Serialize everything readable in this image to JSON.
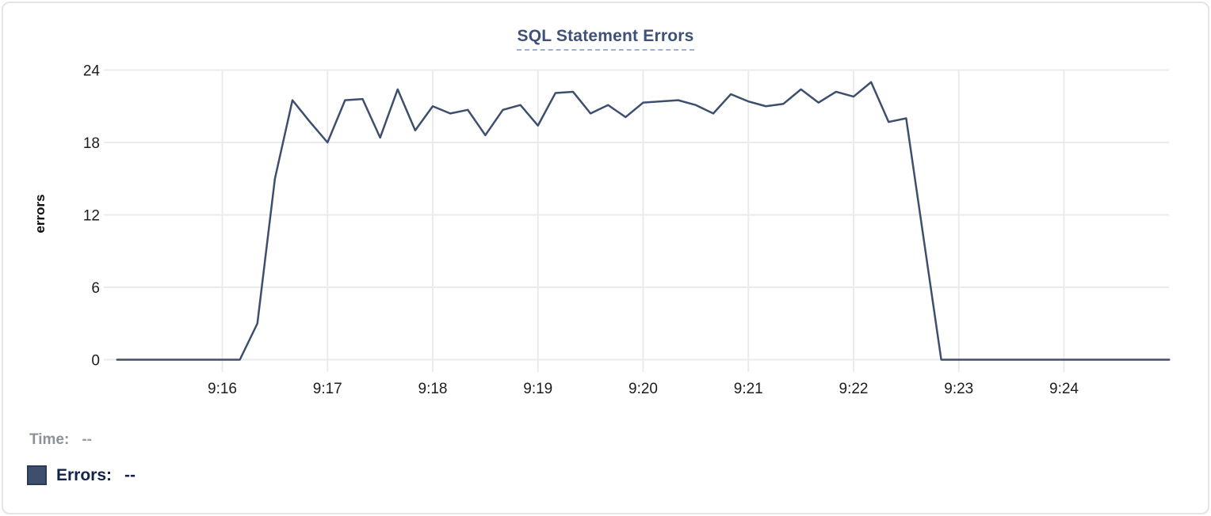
{
  "card": {
    "background": "#ffffff",
    "border_color": "#e4e5e9"
  },
  "chart_data": {
    "type": "line",
    "title": "SQL Statement Errors",
    "xlabel": "",
    "ylabel": "errors",
    "grid": true,
    "legend_position": "bottom-left",
    "ylim": [
      0,
      24
    ],
    "y_ticks": [
      0,
      6,
      12,
      18,
      24
    ],
    "x_start_time": "9:15:00",
    "x_end_time": "9:25:00",
    "xlim_seconds": [
      0,
      600
    ],
    "t_step_seconds": 10,
    "x_ticks": [
      {
        "label": "9:16",
        "t": 60
      },
      {
        "label": "9:17",
        "t": 120
      },
      {
        "label": "9:18",
        "t": 180
      },
      {
        "label": "9:19",
        "t": 240
      },
      {
        "label": "9:20",
        "t": 300
      },
      {
        "label": "9:21",
        "t": 360
      },
      {
        "label": "9:22",
        "t": 420
      },
      {
        "label": "9:23",
        "t": 480
      },
      {
        "label": "9:24",
        "t": 540
      }
    ],
    "series": [
      {
        "name": "Errors",
        "color": "#3e4f6e",
        "values": [
          0,
          0,
          0,
          0,
          0,
          0,
          0,
          0,
          3,
          15,
          21.5,
          19.7,
          18,
          21.5,
          21.6,
          18.4,
          22.4,
          19,
          21,
          20.4,
          20.7,
          18.6,
          20.7,
          21.1,
          19.4,
          22.1,
          22.2,
          20.4,
          21.1,
          20.1,
          21.3,
          21.4,
          21.5,
          21.1,
          20.4,
          22,
          21.4,
          21,
          21.2,
          22.4,
          21.3,
          22.2,
          21.8,
          23,
          19.7,
          20,
          10,
          0,
          0,
          0,
          0,
          0,
          0,
          0,
          0,
          0,
          0,
          0,
          0,
          0,
          0
        ]
      }
    ],
    "style": {
      "grid_color": "#ebebeb",
      "tick_label_color": "#1c1c1e",
      "tick_font_size": 19,
      "line_width": 2.5
    }
  },
  "readout": {
    "time_label": "Time:",
    "time_value": "--",
    "errors_label": "Errors:",
    "errors_value": "--",
    "swatch_color": "#3e4f6e"
  }
}
